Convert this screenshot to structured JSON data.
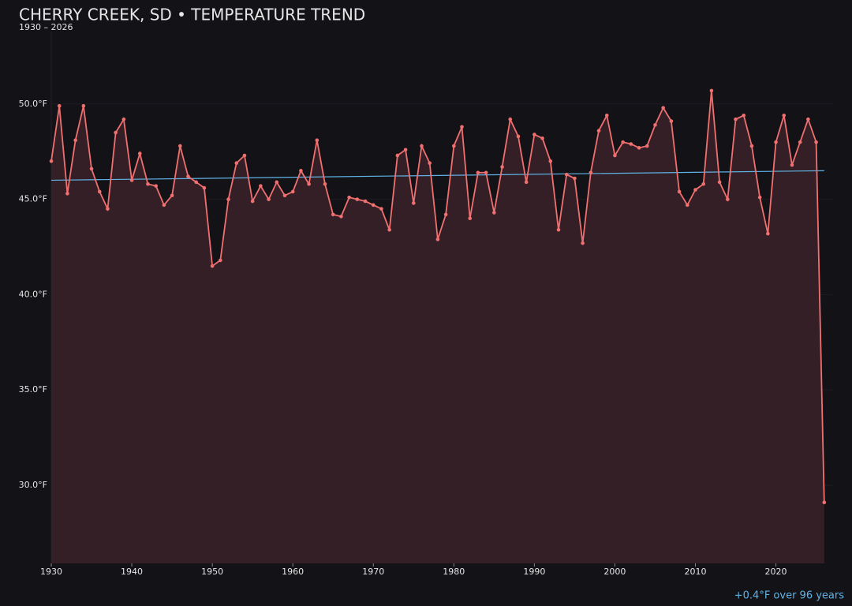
{
  "chart_data": {
    "type": "line",
    "title": "CHERRY CREEK, SD • TEMPERATURE TREND",
    "subtitle": "1930 – 2026",
    "annotation": "+0.4°F over 96 years",
    "x": [
      1930,
      1931,
      1932,
      1933,
      1934,
      1935,
      1936,
      1937,
      1938,
      1939,
      1940,
      1941,
      1942,
      1943,
      1944,
      1945,
      1946,
      1947,
      1948,
      1949,
      1950,
      1951,
      1952,
      1953,
      1954,
      1955,
      1956,
      1957,
      1958,
      1959,
      1960,
      1961,
      1962,
      1963,
      1964,
      1965,
      1966,
      1967,
      1968,
      1969,
      1970,
      1971,
      1972,
      1973,
      1974,
      1975,
      1976,
      1977,
      1978,
      1979,
      1980,
      1981,
      1982,
      1983,
      1984,
      1985,
      1986,
      1987,
      1988,
      1989,
      1990,
      1991,
      1992,
      1993,
      1994,
      1995,
      1996,
      1997,
      1998,
      1999,
      2000,
      2001,
      2002,
      2003,
      2004,
      2005,
      2006,
      2007,
      2008,
      2009,
      2010,
      2011,
      2012,
      2013,
      2014,
      2015,
      2016,
      2017,
      2018,
      2019,
      2020,
      2021,
      2022,
      2023,
      2024,
      2025,
      2026
    ],
    "values": [
      47.0,
      49.9,
      45.3,
      48.1,
      49.9,
      46.6,
      45.4,
      44.5,
      48.5,
      49.2,
      46.0,
      47.4,
      45.8,
      45.7,
      44.7,
      45.2,
      47.8,
      46.2,
      45.9,
      45.6,
      41.5,
      41.8,
      45.0,
      46.9,
      47.3,
      44.9,
      45.7,
      45.0,
      45.9,
      45.2,
      45.4,
      46.5,
      45.8,
      48.1,
      45.8,
      44.2,
      44.1,
      45.1,
      45.0,
      44.9,
      44.7,
      44.5,
      43.4,
      47.3,
      47.6,
      44.8,
      47.8,
      46.9,
      42.9,
      44.2,
      47.8,
      48.8,
      44.0,
      46.4,
      46.4,
      44.3,
      46.7,
      49.2,
      48.3,
      45.9,
      48.4,
      48.2,
      47.0,
      43.4,
      46.3,
      46.1,
      42.7,
      46.4,
      48.6,
      49.4,
      47.3,
      48.0,
      47.9,
      47.7,
      47.8,
      48.9,
      49.8,
      49.1,
      45.4,
      44.7,
      45.5,
      45.8,
      50.7,
      45.9,
      45.0,
      49.2,
      49.4,
      47.8,
      45.1,
      43.2,
      48.0,
      49.4,
      46.8,
      48.0,
      49.2,
      48.0,
      29.1
    ],
    "color": "#f07070",
    "area_color": "#351f26",
    "trend": {
      "x": [
        1930,
        2026
      ],
      "values": [
        46.0,
        46.5
      ],
      "color": "#5fb4e6"
    },
    "xlim": [
      1930,
      2027
    ],
    "ylim": [
      25.9,
      53.8
    ],
    "xticks": [
      1930,
      1940,
      1950,
      1960,
      1970,
      1980,
      1990,
      2000,
      2010,
      2020
    ],
    "yticks": [
      {
        "value": 30,
        "label": "30.0°F"
      },
      {
        "value": 35,
        "label": "35.0°F"
      },
      {
        "value": 40,
        "label": "40.0°F"
      },
      {
        "value": 45,
        "label": "45.0°F"
      },
      {
        "value": 50,
        "label": "50.0°F"
      }
    ],
    "grid": true
  }
}
